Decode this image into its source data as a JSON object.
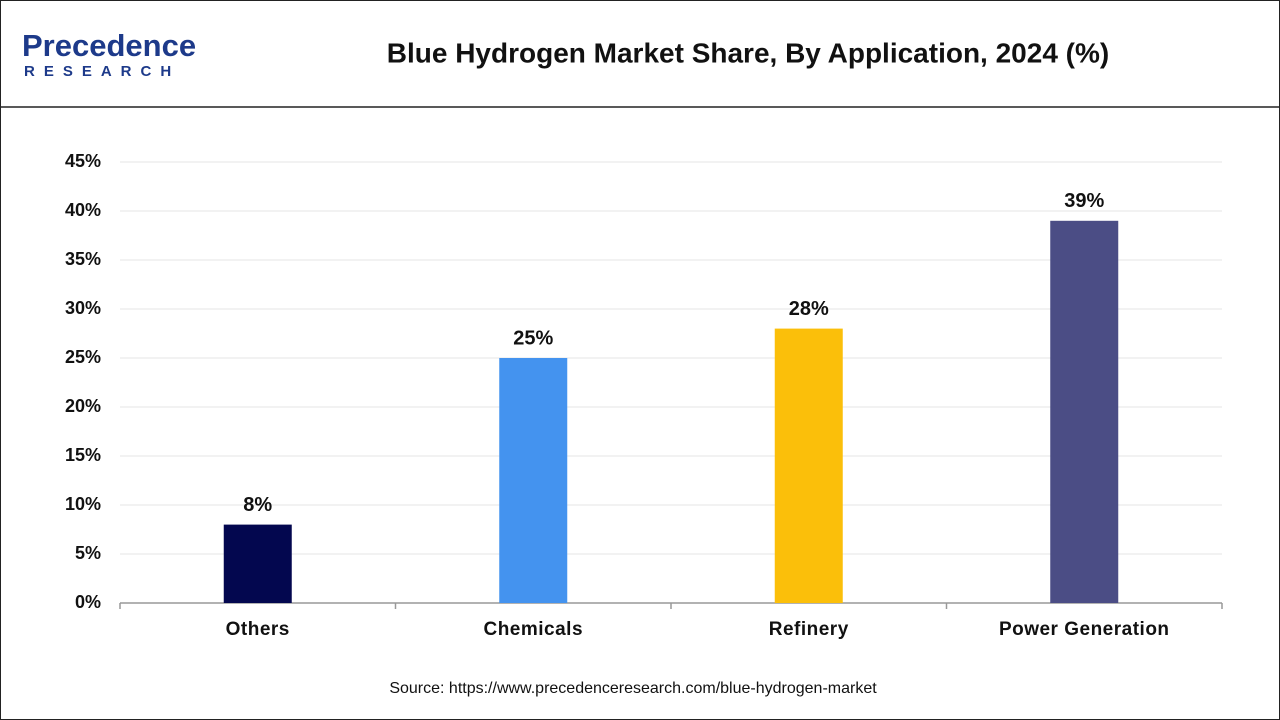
{
  "logo": {
    "name": "Precedence",
    "tagline": "RESEARCH"
  },
  "chart_data": {
    "type": "bar",
    "title": "Blue Hydrogen Market Share, By Application, 2024 (%)",
    "categories": [
      "Others",
      "Chemicals",
      "Refinery",
      "Power Generation"
    ],
    "values": [
      8,
      25,
      28,
      39
    ],
    "value_labels": [
      "8%",
      "25%",
      "28%",
      "39%"
    ],
    "colors": [
      "#03074f",
      "#4493ef",
      "#fbbf0a",
      "#4b4d85"
    ],
    "ylim": [
      0,
      45
    ],
    "yticks": [
      {
        "value": 0,
        "label": "0%"
      },
      {
        "value": 5,
        "label": "5%"
      },
      {
        "value": 10,
        "label": "10%"
      },
      {
        "value": 15,
        "label": "15%"
      },
      {
        "value": 20,
        "label": "20%"
      },
      {
        "value": 25,
        "label": "25%"
      },
      {
        "value": 30,
        "label": "30%"
      },
      {
        "value": 35,
        "label": "35%"
      },
      {
        "value": 40,
        "label": "40%"
      },
      {
        "value": 45,
        "label": "45%"
      }
    ],
    "grid": true,
    "source": "Source: https://www.precedenceresearch.com/blue-hydrogen-market"
  }
}
